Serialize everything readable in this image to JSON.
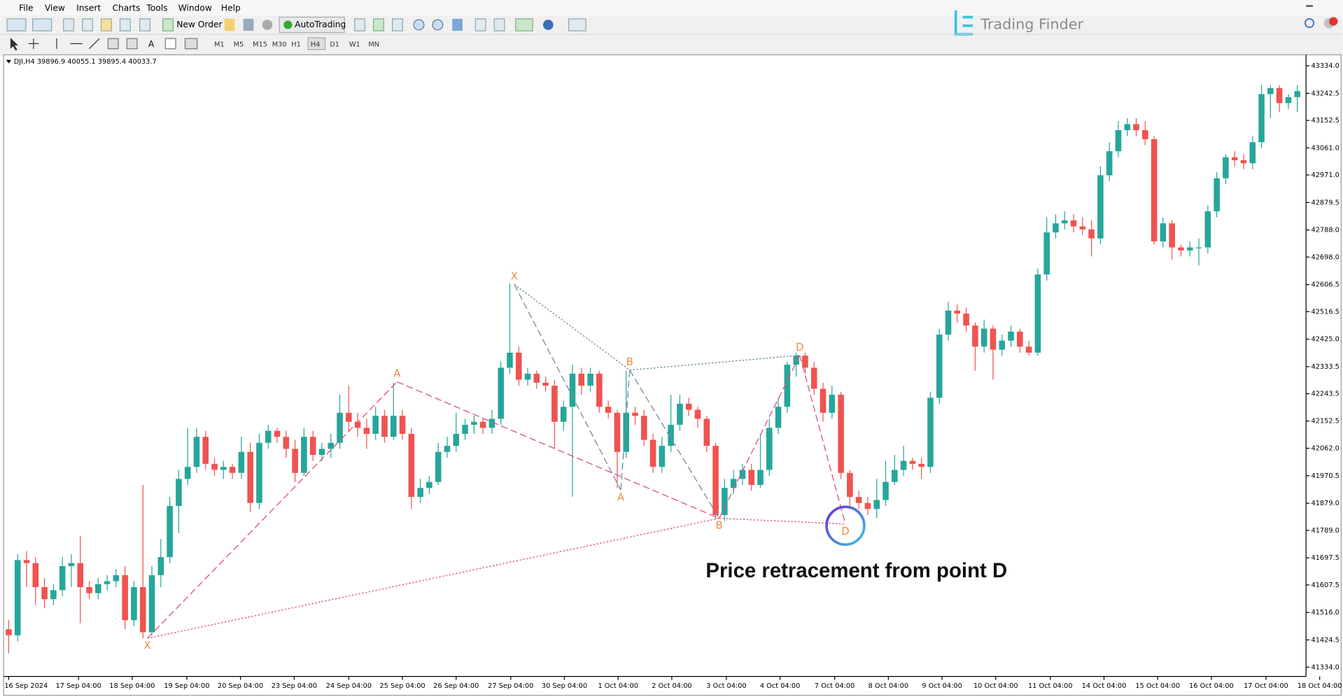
{
  "menu": [
    "File",
    "View",
    "Insert",
    "Charts",
    "Tools",
    "Window",
    "Help"
  ],
  "toolbar": {
    "new_order": "New Order",
    "autotrading": "AutoTrading",
    "timeframes": [
      "M1",
      "M5",
      "M15",
      "M30",
      "H1",
      "H4",
      "D1",
      "W1",
      "MN"
    ]
  },
  "logo": "Trading Finder",
  "chart_data": {
    "type": "candlestick",
    "title": "DJI,H4  39896.9 40055.1 39895.4 40033.7",
    "annotation": "Price retracement from point D",
    "up_color": "#26a69a",
    "down_color": "#ef5350",
    "ylim": [
      41303,
      43365
    ],
    "yticks": [
      {
        "value": 43334,
        "label": "43334.0"
      },
      43242.5,
      43152.5,
      {
        "value": 43061,
        "label": "43061.0"
      },
      {
        "value": 42971,
        "label": "42971.0"
      },
      42879.5,
      {
        "value": 42788,
        "label": "42788.0"
      },
      {
        "value": 42698,
        "label": "42698.0"
      },
      42606.5,
      42516.5,
      {
        "value": 42425,
        "label": "42425.0"
      },
      42333.5,
      42243.5,
      42152.5,
      {
        "value": 42062,
        "label": "42062.0"
      },
      41970.5,
      {
        "value": 41879,
        "label": "41879.0"
      },
      {
        "value": 41789,
        "label": "41789.0"
      },
      41697.5,
      41607.5,
      {
        "value": 41516,
        "label": "41516.0"
      },
      41424.5,
      {
        "value": 41334,
        "label": "41334.0"
      }
    ],
    "xticks": [
      {
        "value": 0,
        "label": "16 Sep 2024"
      },
      {
        "value": 7.8,
        "label": "17 Sep 04:00"
      },
      {
        "value": 13.8,
        "label": "18 Sep 04:00"
      },
      {
        "value": 19.9,
        "label": "19 Sep 04:00"
      },
      {
        "value": 25.9,
        "label": "20 Sep 04:00"
      },
      {
        "value": 31.9,
        "label": "23 Sep 04:00"
      },
      {
        "value": 38,
        "label": "24 Sep 04:00"
      },
      {
        "value": 44,
        "label": "25 Sep 04:00"
      },
      {
        "value": 50,
        "label": "26 Sep 04:00"
      },
      {
        "value": 56.1,
        "label": "27 Sep 04:00"
      },
      {
        "value": 62.1,
        "label": "30 Sep 04:00"
      },
      {
        "value": 68.1,
        "label": "1 Oct 04:00"
      },
      {
        "value": 74.1,
        "label": "2 Oct 04:00"
      },
      {
        "value": 80.2,
        "label": "3 Oct 04:00"
      },
      {
        "value": 86.2,
        "label": "4 Oct 04:00"
      },
      {
        "value": 92.3,
        "label": "7 Oct 04:00"
      },
      {
        "value": 98.3,
        "label": "8 Oct 04:00"
      },
      {
        "value": 104.3,
        "label": "9 Oct 04:00"
      },
      {
        "value": 110.3,
        "label": "10 Oct 04:00"
      },
      {
        "value": 116.4,
        "label": "11 Oct 04:00"
      },
      {
        "value": 122.4,
        "label": "14 Oct 04:00"
      },
      {
        "value": 128.4,
        "label": "15 Oct 04:00"
      },
      {
        "value": 134.4,
        "label": "16 Oct 04:00"
      },
      {
        "value": 140.5,
        "label": "17 Oct 04:00"
      },
      {
        "value": 146.5,
        "label": "18 Oct 04:00"
      }
    ],
    "candles": [
      [
        41460,
        41490,
        41380,
        41440
      ],
      [
        41440,
        41710,
        41420,
        41690
      ],
      [
        41690,
        41720,
        41600,
        41680
      ],
      [
        41680,
        41700,
        41540,
        41600
      ],
      [
        41600,
        41630,
        41530,
        41560
      ],
      [
        41560,
        41610,
        41540,
        41590
      ],
      [
        41590,
        41700,
        41570,
        41670
      ],
      [
        41670,
        41710,
        41600,
        41680
      ],
      [
        41680,
        41770,
        41480,
        41600
      ],
      [
        41600,
        41620,
        41560,
        41580
      ],
      [
        41580,
        41630,
        41560,
        41610
      ],
      [
        41610,
        41640,
        41590,
        41620
      ],
      [
        41620,
        41660,
        41600,
        41640
      ],
      [
        41640,
        41670,
        41460,
        41490
      ],
      [
        41490,
        41620,
        41470,
        41600
      ],
      [
        41600,
        41940,
        41430,
        41450
      ],
      [
        41450,
        41670,
        41440,
        41640
      ],
      [
        41640,
        41760,
        41600,
        41700
      ],
      [
        41700,
        41900,
        41680,
        41870
      ],
      [
        41870,
        41990,
        41780,
        41960
      ],
      [
        41960,
        42130,
        41940,
        42000
      ],
      [
        42000,
        42130,
        41980,
        42100
      ],
      [
        42100,
        42120,
        41990,
        42010
      ],
      [
        42010,
        42030,
        41970,
        41990
      ],
      [
        41990,
        42020,
        41960,
        42000
      ],
      [
        42000,
        42010,
        41960,
        41980
      ],
      [
        41980,
        42100,
        41960,
        42050
      ],
      [
        42050,
        42080,
        41850,
        41880
      ],
      [
        41880,
        42110,
        41860,
        42080
      ],
      [
        42080,
        42140,
        42060,
        42120
      ],
      [
        42120,
        42130,
        42080,
        42100
      ],
      [
        42100,
        42120,
        42030,
        42060
      ],
      [
        42060,
        42090,
        41950,
        41980
      ],
      [
        41980,
        42130,
        41970,
        42100
      ],
      [
        42100,
        42120,
        42020,
        42040
      ],
      [
        42040,
        42080,
        42020,
        42060
      ],
      [
        42060,
        42110,
        42030,
        42080
      ],
      [
        42080,
        42240,
        42060,
        42180
      ],
      [
        42180,
        42270,
        42120,
        42150
      ],
      [
        42150,
        42180,
        42100,
        42130
      ],
      [
        42130,
        42160,
        42060,
        42110
      ],
      [
        42110,
        42200,
        42090,
        42170
      ],
      [
        42170,
        42190,
        42080,
        42100
      ],
      [
        42100,
        42280,
        42090,
        42170
      ],
      [
        42170,
        42190,
        42090,
        42110
      ],
      [
        42110,
        42130,
        41860,
        41900
      ],
      [
        41900,
        41960,
        41880,
        41930
      ],
      [
        41930,
        41970,
        41910,
        41950
      ],
      [
        41950,
        42080,
        41940,
        42050
      ],
      [
        42050,
        42100,
        42030,
        42070
      ],
      [
        42070,
        42180,
        42050,
        42110
      ],
      [
        42110,
        42160,
        42090,
        42140
      ],
      [
        42140,
        42170,
        42110,
        42150
      ],
      [
        42150,
        42160,
        42110,
        42130
      ],
      [
        42130,
        42190,
        42110,
        42160
      ],
      [
        42160,
        42350,
        42140,
        42330
      ],
      [
        42330,
        42610,
        42310,
        42380
      ],
      [
        42380,
        42400,
        42270,
        42290
      ],
      [
        42290,
        42330,
        42270,
        42310
      ],
      [
        42310,
        42320,
        42260,
        42280
      ],
      [
        42280,
        42300,
        42250,
        42270
      ],
      [
        42270,
        42290,
        42060,
        42150
      ],
      [
        42150,
        42220,
        42120,
        42200
      ],
      [
        42200,
        42340,
        41900,
        42310
      ],
      [
        42310,
        42330,
        42240,
        42270
      ],
      [
        42270,
        42330,
        42250,
        42310
      ],
      [
        42310,
        42320,
        42180,
        42200
      ],
      [
        42200,
        42220,
        42160,
        42180
      ],
      [
        42180,
        42190,
        41930,
        42050
      ],
      [
        42050,
        42320,
        42030,
        42180
      ],
      [
        42180,
        42200,
        42140,
        42170
      ],
      [
        42170,
        42190,
        42070,
        42090
      ],
      [
        42090,
        42110,
        41980,
        42000
      ],
      [
        42000,
        42100,
        41980,
        42070
      ],
      [
        42070,
        42240,
        42050,
        42140
      ],
      [
        42140,
        42240,
        42120,
        42210
      ],
      [
        42210,
        42230,
        42170,
        42190
      ],
      [
        42190,
        42200,
        42130,
        42160
      ],
      [
        42160,
        42170,
        42050,
        42070
      ],
      [
        42070,
        42080,
        41825,
        41840
      ],
      [
        41840,
        41960,
        41820,
        41930
      ],
      [
        41930,
        41990,
        41910,
        41960
      ],
      [
        41960,
        42010,
        41940,
        41990
      ],
      [
        41990,
        42010,
        41920,
        41940
      ],
      [
        41940,
        42110,
        41930,
        41990
      ],
      [
        41990,
        42160,
        41970,
        42130
      ],
      [
        42130,
        42230,
        42110,
        42200
      ],
      [
        42200,
        42350,
        42180,
        42340
      ],
      [
        42340,
        42380,
        42300,
        42370
      ],
      [
        42370,
        42380,
        42310,
        42330
      ],
      [
        42330,
        42350,
        42240,
        42260
      ],
      [
        42260,
        42280,
        42150,
        42180
      ],
      [
        42180,
        42270,
        42160,
        42240
      ],
      [
        42240,
        42250,
        41960,
        41980
      ],
      [
        41980,
        41990,
        41870,
        41900
      ],
      [
        41900,
        41920,
        41860,
        41880
      ],
      [
        41880,
        41900,
        41840,
        41860
      ],
      [
        41860,
        41960,
        41830,
        41890
      ],
      [
        41890,
        42020,
        41870,
        41950
      ],
      [
        41950,
        42040,
        41940,
        41990
      ],
      [
        41990,
        42070,
        41970,
        42020
      ],
      [
        42020,
        42030,
        41990,
        42010
      ],
      [
        42010,
        42030,
        41960,
        42000
      ],
      [
        42000,
        42250,
        41980,
        42230
      ],
      [
        42230,
        42460,
        42210,
        42440
      ],
      [
        42440,
        42550,
        42420,
        42520
      ],
      [
        42520,
        42540,
        42480,
        42510
      ],
      [
        42510,
        42530,
        42450,
        42470
      ],
      [
        42470,
        42480,
        42320,
        42400
      ],
      [
        42400,
        42490,
        42380,
        42460
      ],
      [
        42460,
        42470,
        42290,
        42390
      ],
      [
        42390,
        42440,
        42370,
        42420
      ],
      [
        42420,
        42470,
        42400,
        42450
      ],
      [
        42450,
        42460,
        42380,
        42400
      ],
      [
        42400,
        42420,
        42370,
        42380
      ],
      [
        42380,
        42660,
        42370,
        42640
      ],
      [
        42640,
        42830,
        42620,
        42780
      ],
      [
        42780,
        42840,
        42760,
        42810
      ],
      [
        42810,
        42850,
        42790,
        42820
      ],
      [
        42820,
        42840,
        42780,
        42800
      ],
      [
        42800,
        42830,
        42770,
        42790
      ],
      [
        42790,
        42820,
        42700,
        42760
      ],
      [
        42760,
        43000,
        42740,
        42970
      ],
      [
        42970,
        43080,
        42950,
        43050
      ],
      [
        43050,
        43150,
        43030,
        43120
      ],
      [
        43120,
        43160,
        43100,
        43140
      ],
      [
        43140,
        43160,
        43100,
        43120
      ],
      [
        43120,
        43150,
        43070,
        43090
      ],
      [
        43090,
        43100,
        42740,
        42750
      ],
      [
        42750,
        42830,
        42730,
        42810
      ],
      [
        42810,
        42820,
        42690,
        42730
      ],
      [
        42730,
        42740,
        42700,
        42720
      ],
      [
        42720,
        42750,
        42700,
        42730
      ],
      [
        42730,
        42760,
        42670,
        42730
      ],
      [
        42730,
        42870,
        42710,
        42850
      ],
      [
        42850,
        42980,
        42830,
        42960
      ],
      [
        42960,
        43040,
        42940,
        43030
      ],
      [
        43030,
        43050,
        43000,
        43020
      ],
      [
        43020,
        43040,
        42990,
        43010
      ],
      [
        43010,
        43100,
        42990,
        43080
      ],
      [
        43080,
        43270,
        43060,
        43240
      ],
      [
        43240,
        43270,
        43160,
        43260
      ],
      [
        43260,
        43270,
        43180,
        43210
      ],
      [
        43210,
        43240,
        43190,
        43230
      ],
      [
        43230,
        43270,
        43180,
        43250
      ]
    ],
    "patterns": [
      {
        "color": "#e0508a",
        "points": [
          {
            "label": "X",
            "x": 15.5,
            "price": 41430
          },
          {
            "label": "A",
            "x": 43.4,
            "price": 42283
          },
          {
            "label": "B",
            "x": 79.4,
            "price": 41829
          },
          {
            "label": "D",
            "x": 93.5,
            "price": 41810
          }
        ],
        "apex": {
          "x": 88.4,
          "price": 42371
        }
      },
      {
        "color": "#6f8f98",
        "points": [
          {
            "label": "X",
            "x": 56.5,
            "price": 42607
          },
          {
            "label": "A",
            "x": 68.4,
            "price": 41923
          },
          {
            "label": "B",
            "x": 69.4,
            "price": 42322
          },
          {
            "label": "D",
            "x": 88.4,
            "price": 42371
          }
        ]
      }
    ]
  }
}
